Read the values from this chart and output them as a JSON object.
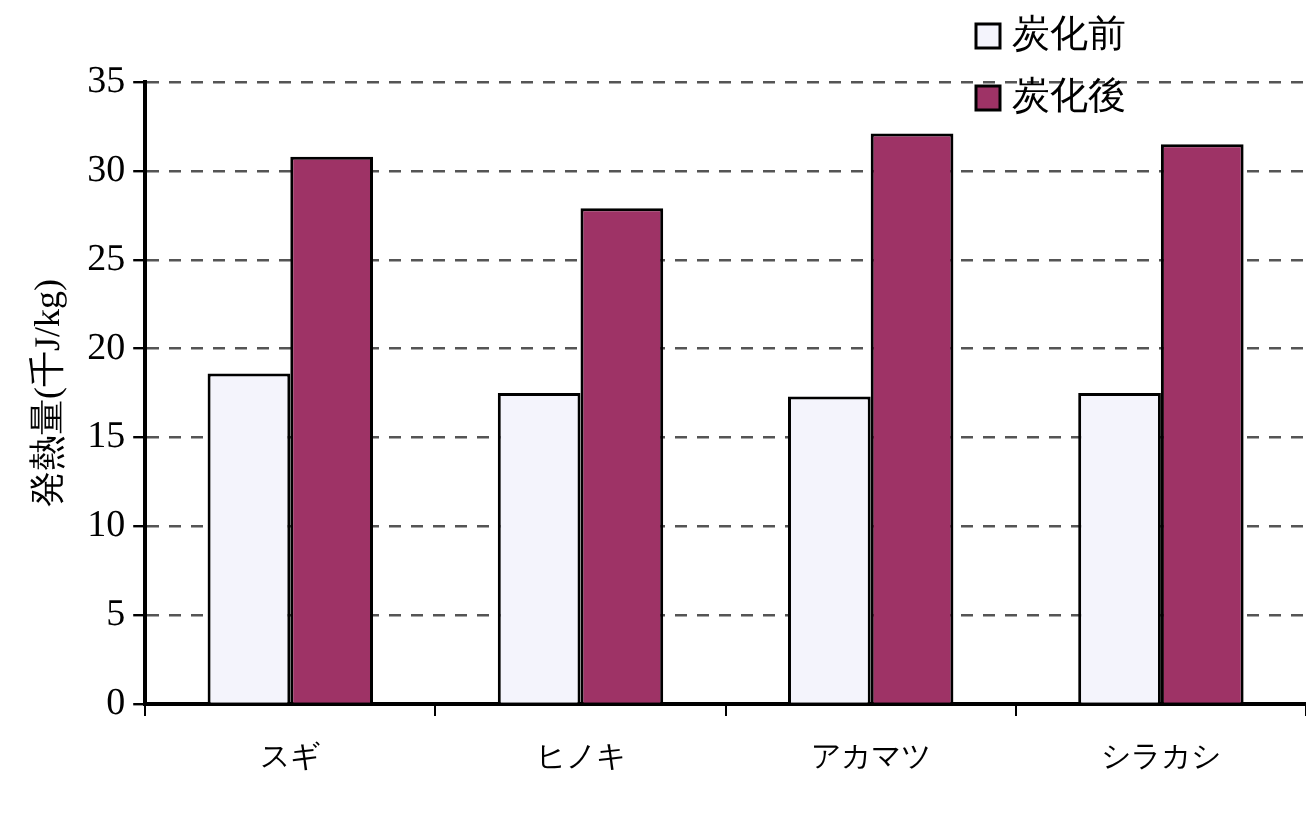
{
  "chart_data": {
    "type": "bar",
    "ylabel": "発熱量(千J/kg)",
    "categories": [
      "スギ",
      "ヒノキ",
      "アカマツ",
      "シラカシ"
    ],
    "series": [
      {
        "name": "炭化前",
        "color": "#f4f4fc",
        "values": [
          18.6,
          17.5,
          17.3,
          17.5
        ]
      },
      {
        "name": "炭化後",
        "color": "#9e3366",
        "values": [
          30.8,
          27.9,
          32.1,
          31.5
        ]
      }
    ],
    "ylim": [
      0,
      35
    ],
    "yticks": [
      0,
      5,
      10,
      15,
      20,
      25,
      30,
      35
    ],
    "grid": "y",
    "legend": "top right"
  }
}
